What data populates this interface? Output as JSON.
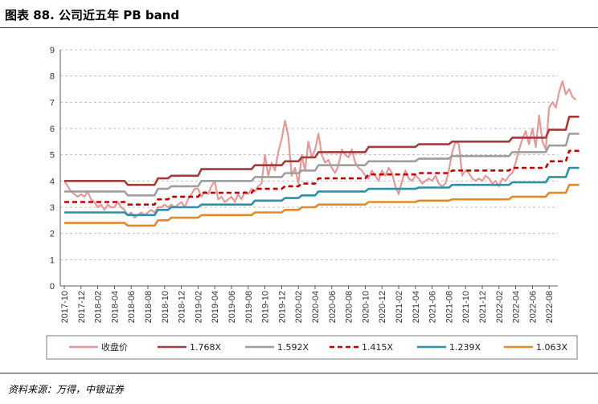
{
  "header": {
    "title": "图表 88. 公司近五年 PB band"
  },
  "footer": {
    "source": "资料来源：万得，中银证券"
  },
  "chart_data": {
    "type": "line",
    "title": "图表 88. 公司近五年 PB band",
    "xlabel": "",
    "ylabel": "",
    "ylim": [
      0,
      9
    ],
    "yticks": [
      "0",
      "1",
      "2",
      "3",
      "4",
      "5",
      "6",
      "7",
      "8",
      "9"
    ],
    "grid": true,
    "legend_position": "bottom",
    "x_tick_labels": [
      "2017-10",
      "2017-12",
      "2018-02",
      "2018-04",
      "2018-06",
      "2018-08",
      "2018-10",
      "2018-12",
      "2019-02",
      "2019-04",
      "2019-06",
      "2019-08",
      "2019-10",
      "2019-12",
      "2020-02",
      "2020-04",
      "2020-06",
      "2020-08",
      "2020-10",
      "2020-12",
      "2021-02",
      "2021-04",
      "2021-06",
      "2021-08",
      "2021-10",
      "2021-12",
      "2022-02",
      "2022-04",
      "2022-06",
      "2022-08"
    ],
    "x_index_range": [
      0,
      30.5
    ],
    "series": [
      {
        "name": "收盘价",
        "color": "#e39a9a",
        "dash": "solid",
        "points": [
          [
            0,
            4.0
          ],
          [
            0.2,
            3.8
          ],
          [
            0.4,
            3.6
          ],
          [
            0.6,
            3.5
          ],
          [
            0.8,
            3.4
          ],
          [
            1.0,
            3.5
          ],
          [
            1.2,
            3.4
          ],
          [
            1.4,
            3.6
          ],
          [
            1.6,
            3.3
          ],
          [
            1.8,
            3.2
          ],
          [
            2.0,
            3.0
          ],
          [
            2.2,
            3.1
          ],
          [
            2.4,
            2.9
          ],
          [
            2.6,
            3.1
          ],
          [
            2.8,
            3.0
          ],
          [
            3.0,
            3.0
          ],
          [
            3.2,
            3.2
          ],
          [
            3.4,
            3.0
          ],
          [
            3.6,
            2.9
          ],
          [
            3.8,
            2.7
          ],
          [
            4.0,
            2.8
          ],
          [
            4.2,
            2.6
          ],
          [
            4.4,
            2.7
          ],
          [
            4.6,
            2.8
          ],
          [
            4.8,
            2.7
          ],
          [
            5.0,
            2.8
          ],
          [
            5.2,
            2.9
          ],
          [
            5.4,
            2.8
          ],
          [
            5.6,
            3.0
          ],
          [
            5.8,
            3.0
          ],
          [
            6.0,
            3.1
          ],
          [
            6.2,
            3.0
          ],
          [
            6.4,
            3.1
          ],
          [
            6.6,
            3.0
          ],
          [
            6.8,
            3.1
          ],
          [
            7.0,
            3.2
          ],
          [
            7.2,
            3.0
          ],
          [
            7.4,
            3.3
          ],
          [
            7.6,
            3.5
          ],
          [
            7.8,
            3.7
          ],
          [
            8.0,
            3.7
          ],
          [
            8.2,
            3.4
          ],
          [
            8.4,
            3.6
          ],
          [
            8.6,
            3.5
          ],
          [
            8.8,
            3.8
          ],
          [
            9.0,
            4.0
          ],
          [
            9.2,
            3.3
          ],
          [
            9.4,
            3.4
          ],
          [
            9.6,
            3.2
          ],
          [
            9.8,
            3.3
          ],
          [
            10.0,
            3.4
          ],
          [
            10.2,
            3.2
          ],
          [
            10.4,
            3.5
          ],
          [
            10.6,
            3.3
          ],
          [
            10.8,
            3.6
          ],
          [
            11.0,
            3.5
          ],
          [
            11.2,
            3.7
          ],
          [
            11.4,
            3.6
          ],
          [
            11.6,
            3.8
          ],
          [
            11.8,
            3.9
          ],
          [
            12.0,
            5.0
          ],
          [
            12.2,
            4.2
          ],
          [
            12.4,
            4.7
          ],
          [
            12.6,
            4.4
          ],
          [
            12.8,
            5.1
          ],
          [
            13.0,
            5.6
          ],
          [
            13.2,
            6.3
          ],
          [
            13.4,
            5.7
          ],
          [
            13.6,
            4.2
          ],
          [
            13.8,
            4.5
          ],
          [
            14.0,
            3.9
          ],
          [
            14.2,
            5.0
          ],
          [
            14.4,
            4.4
          ],
          [
            14.6,
            5.5
          ],
          [
            14.8,
            4.9
          ],
          [
            15.0,
            5.2
          ],
          [
            15.2,
            5.8
          ],
          [
            15.4,
            5.0
          ],
          [
            15.6,
            4.7
          ],
          [
            15.8,
            4.8
          ],
          [
            16.0,
            4.5
          ],
          [
            16.2,
            4.3
          ],
          [
            16.4,
            4.6
          ],
          [
            16.6,
            5.2
          ],
          [
            16.8,
            5.0
          ],
          [
            17.0,
            4.9
          ],
          [
            17.2,
            5.2
          ],
          [
            17.4,
            4.7
          ],
          [
            17.6,
            4.5
          ],
          [
            17.8,
            4.4
          ],
          [
            18.0,
            4.2
          ],
          [
            18.2,
            4.1
          ],
          [
            18.4,
            4.4
          ],
          [
            18.6,
            4.2
          ],
          [
            18.8,
            4.0
          ],
          [
            19.0,
            4.4
          ],
          [
            19.2,
            4.2
          ],
          [
            19.4,
            4.5
          ],
          [
            19.6,
            4.3
          ],
          [
            19.8,
            3.8
          ],
          [
            20.0,
            3.5
          ],
          [
            20.2,
            4.0
          ],
          [
            20.4,
            4.4
          ],
          [
            20.6,
            4.1
          ],
          [
            20.8,
            4.0
          ],
          [
            21.0,
            4.2
          ],
          [
            21.2,
            4.1
          ],
          [
            21.4,
            3.9
          ],
          [
            21.6,
            4.0
          ],
          [
            21.8,
            4.1
          ],
          [
            22.0,
            4.0
          ],
          [
            22.2,
            4.2
          ],
          [
            22.4,
            3.9
          ],
          [
            22.6,
            3.8
          ],
          [
            22.8,
            3.9
          ],
          [
            23.0,
            4.4
          ],
          [
            23.2,
            5.1
          ],
          [
            23.4,
            5.5
          ],
          [
            23.6,
            5.4
          ],
          [
            23.8,
            4.2
          ],
          [
            24.0,
            4.4
          ],
          [
            24.2,
            4.3
          ],
          [
            24.4,
            4.1
          ],
          [
            24.6,
            4.0
          ],
          [
            24.8,
            4.1
          ],
          [
            25.0,
            4.0
          ],
          [
            25.2,
            4.2
          ],
          [
            25.4,
            4.1
          ],
          [
            25.6,
            3.9
          ],
          [
            25.8,
            4.0
          ],
          [
            26.0,
            3.8
          ],
          [
            26.2,
            4.1
          ],
          [
            26.4,
            4.0
          ],
          [
            26.6,
            4.2
          ],
          [
            26.8,
            4.3
          ],
          [
            27.0,
            4.7
          ],
          [
            27.2,
            5.2
          ],
          [
            27.4,
            5.6
          ],
          [
            27.6,
            5.9
          ],
          [
            27.8,
            5.4
          ],
          [
            28.0,
            6.0
          ],
          [
            28.2,
            5.3
          ],
          [
            28.4,
            6.5
          ],
          [
            28.6,
            5.5
          ],
          [
            28.8,
            5.2
          ],
          [
            29.0,
            6.8
          ],
          [
            29.2,
            7.0
          ],
          [
            29.4,
            6.8
          ],
          [
            29.6,
            7.4
          ],
          [
            29.8,
            7.8
          ],
          [
            30.0,
            7.3
          ],
          [
            30.2,
            7.5
          ],
          [
            30.4,
            7.2
          ],
          [
            30.6,
            7.1
          ]
        ]
      },
      {
        "name": "1.768X",
        "color": "#a33b3b",
        "dash": "solid",
        "points": [
          [
            0,
            4.0
          ],
          [
            3.6,
            4.0
          ],
          [
            3.8,
            3.85
          ],
          [
            5.4,
            3.85
          ],
          [
            5.6,
            4.1
          ],
          [
            6.2,
            4.1
          ],
          [
            6.4,
            4.2
          ],
          [
            8.0,
            4.2
          ],
          [
            8.2,
            4.45
          ],
          [
            11.2,
            4.45
          ],
          [
            11.4,
            4.6
          ],
          [
            13.0,
            4.6
          ],
          [
            13.2,
            4.75
          ],
          [
            14.0,
            4.75
          ],
          [
            14.2,
            4.9
          ],
          [
            15.0,
            4.9
          ],
          [
            15.2,
            5.1
          ],
          [
            18.0,
            5.1
          ],
          [
            18.2,
            5.3
          ],
          [
            21.0,
            5.3
          ],
          [
            21.2,
            5.4
          ],
          [
            23.0,
            5.4
          ],
          [
            23.2,
            5.5
          ],
          [
            26.6,
            5.5
          ],
          [
            26.8,
            5.65
          ],
          [
            28.8,
            5.65
          ],
          [
            29.0,
            5.95
          ],
          [
            30.0,
            5.95
          ],
          [
            30.2,
            6.45
          ],
          [
            30.8,
            6.45
          ]
        ]
      },
      {
        "name": "1.592X",
        "color": "#9e9e9e",
        "dash": "solid",
        "points": [
          [
            0,
            3.6
          ],
          [
            3.6,
            3.6
          ],
          [
            3.8,
            3.45
          ],
          [
            5.4,
            3.45
          ],
          [
            5.6,
            3.7
          ],
          [
            6.2,
            3.7
          ],
          [
            6.4,
            3.8
          ],
          [
            8.0,
            3.8
          ],
          [
            8.2,
            4.0
          ],
          [
            11.2,
            4.0
          ],
          [
            11.4,
            4.15
          ],
          [
            13.0,
            4.15
          ],
          [
            13.2,
            4.3
          ],
          [
            14.0,
            4.3
          ],
          [
            14.2,
            4.4
          ],
          [
            15.0,
            4.4
          ],
          [
            15.2,
            4.6
          ],
          [
            18.0,
            4.6
          ],
          [
            18.2,
            4.75
          ],
          [
            21.0,
            4.75
          ],
          [
            21.2,
            4.85
          ],
          [
            23.0,
            4.85
          ],
          [
            23.2,
            4.95
          ],
          [
            26.6,
            4.95
          ],
          [
            26.8,
            5.1
          ],
          [
            28.8,
            5.1
          ],
          [
            29.0,
            5.35
          ],
          [
            30.0,
            5.35
          ],
          [
            30.2,
            5.8
          ],
          [
            30.8,
            5.8
          ]
        ]
      },
      {
        "name": "1.415X",
        "color": "#c00000",
        "dash": "dashed",
        "points": [
          [
            0,
            3.2
          ],
          [
            3.6,
            3.2
          ],
          [
            3.8,
            3.1
          ],
          [
            5.4,
            3.1
          ],
          [
            5.6,
            3.3
          ],
          [
            6.2,
            3.3
          ],
          [
            6.4,
            3.4
          ],
          [
            8.0,
            3.4
          ],
          [
            8.2,
            3.55
          ],
          [
            11.2,
            3.55
          ],
          [
            11.4,
            3.7
          ],
          [
            13.0,
            3.7
          ],
          [
            13.2,
            3.8
          ],
          [
            14.0,
            3.8
          ],
          [
            14.2,
            3.9
          ],
          [
            15.0,
            3.9
          ],
          [
            15.2,
            4.1
          ],
          [
            18.0,
            4.1
          ],
          [
            18.2,
            4.25
          ],
          [
            21.0,
            4.25
          ],
          [
            21.2,
            4.3
          ],
          [
            23.0,
            4.3
          ],
          [
            23.2,
            4.4
          ],
          [
            26.6,
            4.4
          ],
          [
            26.8,
            4.5
          ],
          [
            28.8,
            4.5
          ],
          [
            29.0,
            4.75
          ],
          [
            30.0,
            4.75
          ],
          [
            30.2,
            5.15
          ],
          [
            30.8,
            5.15
          ]
        ]
      },
      {
        "name": "1.239X",
        "color": "#2e8fa8",
        "dash": "solid",
        "points": [
          [
            0,
            2.8
          ],
          [
            3.6,
            2.8
          ],
          [
            3.8,
            2.7
          ],
          [
            5.4,
            2.7
          ],
          [
            5.6,
            2.9
          ],
          [
            6.2,
            2.9
          ],
          [
            6.4,
            3.0
          ],
          [
            8.0,
            3.0
          ],
          [
            8.2,
            3.1
          ],
          [
            11.2,
            3.1
          ],
          [
            11.4,
            3.25
          ],
          [
            13.0,
            3.25
          ],
          [
            13.2,
            3.35
          ],
          [
            14.0,
            3.35
          ],
          [
            14.2,
            3.45
          ],
          [
            15.0,
            3.45
          ],
          [
            15.2,
            3.6
          ],
          [
            18.0,
            3.6
          ],
          [
            18.2,
            3.7
          ],
          [
            21.0,
            3.7
          ],
          [
            21.2,
            3.75
          ],
          [
            23.0,
            3.75
          ],
          [
            23.2,
            3.85
          ],
          [
            26.6,
            3.85
          ],
          [
            26.8,
            3.95
          ],
          [
            28.8,
            3.95
          ],
          [
            29.0,
            4.15
          ],
          [
            30.0,
            4.15
          ],
          [
            30.2,
            4.5
          ],
          [
            30.8,
            4.5
          ]
        ]
      },
      {
        "name": "1.063X",
        "color": "#e08a2e",
        "dash": "solid",
        "points": [
          [
            0,
            2.4
          ],
          [
            3.6,
            2.4
          ],
          [
            3.8,
            2.3
          ],
          [
            5.4,
            2.3
          ],
          [
            5.6,
            2.5
          ],
          [
            6.2,
            2.5
          ],
          [
            6.4,
            2.6
          ],
          [
            8.0,
            2.6
          ],
          [
            8.2,
            2.7
          ],
          [
            11.2,
            2.7
          ],
          [
            11.4,
            2.8
          ],
          [
            13.0,
            2.8
          ],
          [
            13.2,
            2.9
          ],
          [
            14.0,
            2.9
          ],
          [
            14.2,
            3.0
          ],
          [
            15.0,
            3.0
          ],
          [
            15.2,
            3.1
          ],
          [
            18.0,
            3.1
          ],
          [
            18.2,
            3.2
          ],
          [
            21.0,
            3.2
          ],
          [
            21.2,
            3.25
          ],
          [
            23.0,
            3.25
          ],
          [
            23.2,
            3.3
          ],
          [
            26.6,
            3.3
          ],
          [
            26.8,
            3.4
          ],
          [
            28.8,
            3.4
          ],
          [
            29.0,
            3.55
          ],
          [
            30.0,
            3.55
          ],
          [
            30.2,
            3.85
          ],
          [
            30.8,
            3.85
          ]
        ]
      }
    ]
  }
}
